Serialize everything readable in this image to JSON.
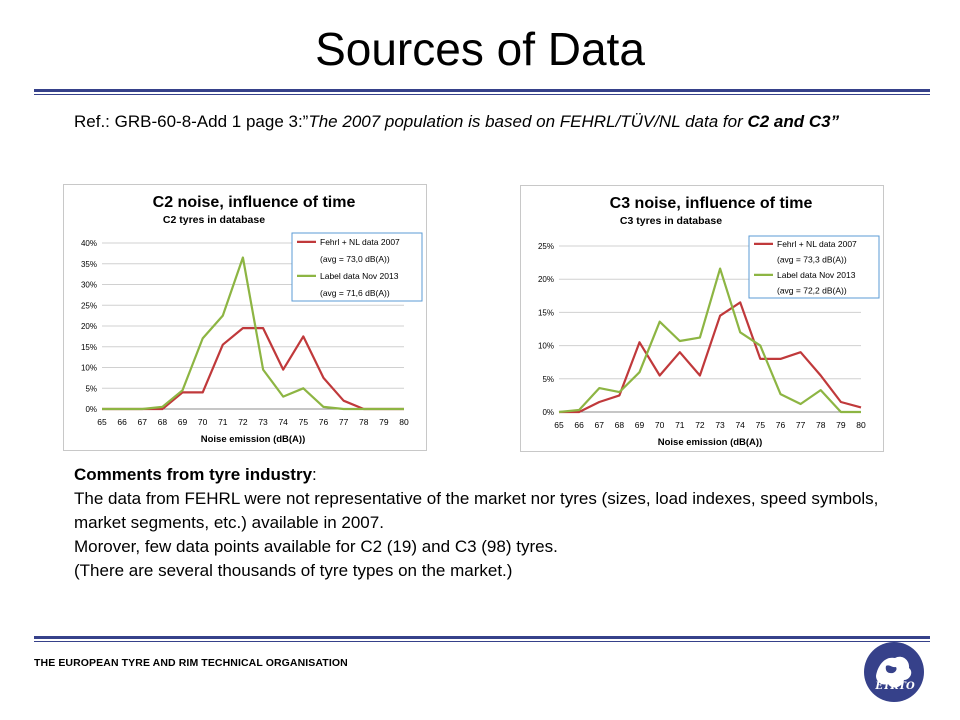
{
  "slide": {
    "title": "Sources of Data",
    "ref_prefix": "Ref.: GRB-60-8-Add 1 page 3:”",
    "ref_quote": "The 2007 population is based on FEHRL/TÜV/NL data for ",
    "ref_bold": "C2 and C3”",
    "comments_heading": "Comments from tyre industry",
    "comments_colon": ":",
    "comments_lines": [
      "The data from FEHRL were not representative of the market nor tyres (sizes, load indexes, speed symbols, market segments, etc.) available in 2007.",
      "Morover, few data points available for C2 (19) and C3 (98) tyres.",
      "(There are several thousands of tyre types on the market.)"
    ],
    "footer": "THE EUROPEAN TYRE AND RIM TECHNICAL ORGANISATION",
    "logo_text": "ETRTO"
  },
  "colors": {
    "navy": "#36418a",
    "red": "#c0393b",
    "green": "#8db543",
    "legend_border": "#5b9bd5"
  },
  "chart_data": [
    {
      "type": "line",
      "title": "C2 noise, influence of time",
      "subtitle": "C2 tyres  in database",
      "xlabel": "Noise emission (dB(A))",
      "ylabel": "",
      "x": [
        65,
        66,
        67,
        68,
        69,
        70,
        71,
        72,
        73,
        74,
        75,
        76,
        77,
        78,
        79,
        80
      ],
      "ylim": [
        0,
        0.4
      ],
      "yticks": [
        "0%",
        "5%",
        "10%",
        "15%",
        "20%",
        "25%",
        "30%",
        "35%",
        "40%"
      ],
      "grid": true,
      "legend_placement": "top-right",
      "series": [
        {
          "name": "Fehrl + NL data 2007",
          "note": "(avg = 73,0 dB(A))",
          "color": "#c0393b",
          "values": [
            0,
            0,
            0,
            0,
            0.04,
            0.04,
            0.155,
            0.195,
            0.195,
            0.095,
            0.175,
            0.075,
            0.02,
            0,
            0,
            0
          ]
        },
        {
          "name": "Label data Nov 2013",
          "note": "(avg = 71,6 dB(A))",
          "color": "#8db543",
          "values": [
            0,
            0,
            0,
            0.005,
            0.045,
            0.17,
            0.225,
            0.365,
            0.095,
            0.03,
            0.05,
            0.005,
            0,
            0,
            0,
            0
          ]
        }
      ]
    },
    {
      "type": "line",
      "title": "C3 noise, influence of time",
      "subtitle": "C3 tyres in database",
      "xlabel": "Noise emission (dB(A))",
      "ylabel": "",
      "x": [
        65,
        66,
        67,
        68,
        69,
        70,
        71,
        72,
        73,
        74,
        75,
        76,
        77,
        78,
        79,
        80
      ],
      "ylim": [
        0,
        0.25
      ],
      "yticks": [
        "0%",
        "5%",
        "10%",
        "15%",
        "20%",
        "25%"
      ],
      "grid": true,
      "legend_placement": "top-right",
      "series": [
        {
          "name": "Fehrl + NL data 2007",
          "note": "(avg = 73,3 dB(A))",
          "color": "#c0393b",
          "values": [
            0,
            0,
            0.015,
            0.025,
            0.105,
            0.055,
            0.09,
            0.055,
            0.145,
            0.165,
            0.08,
            0.08,
            0.09,
            0.055,
            0.015,
            0.007
          ]
        },
        {
          "name": "Label data Nov 2013",
          "note": "(avg = 72,2 dB(A))",
          "color": "#8db543",
          "values": [
            0,
            0.003,
            0.036,
            0.03,
            0.06,
            0.136,
            0.107,
            0.112,
            0.216,
            0.12,
            0.1,
            0.027,
            0.012,
            0.033,
            0,
            0
          ]
        }
      ]
    }
  ]
}
